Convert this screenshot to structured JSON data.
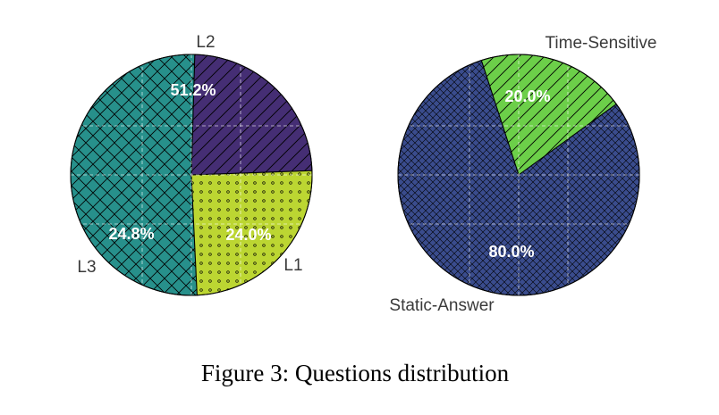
{
  "chart_data": [
    {
      "type": "pie",
      "name": "difficulty-levels",
      "slices": [
        {
          "label": "L1",
          "value": 24.0,
          "pct_label": "24.0%",
          "color": "#452e74",
          "pattern": "diagonal-lines"
        },
        {
          "label": "L2",
          "value": 51.2,
          "pct_label": "51.2%",
          "color": "#27908b",
          "pattern": "crosshatch"
        },
        {
          "label": "L3",
          "value": 24.8,
          "pct_label": "24.8%",
          "color": "#bcd632",
          "pattern": "dots"
        }
      ],
      "grid": true
    },
    {
      "type": "pie",
      "name": "answer-types",
      "slices": [
        {
          "label": "Time-Sensitive",
          "value": 20.0,
          "pct_label": "20.0%",
          "color": "#6ccf49",
          "pattern": "diagonal-lines"
        },
        {
          "label": "Static-Answer",
          "value": 80.0,
          "pct_label": "80.0%",
          "color": "#3a4c8d",
          "pattern": "dense-crosshatch"
        }
      ],
      "grid": true
    }
  ],
  "caption": "Figure 3: Questions distribution"
}
